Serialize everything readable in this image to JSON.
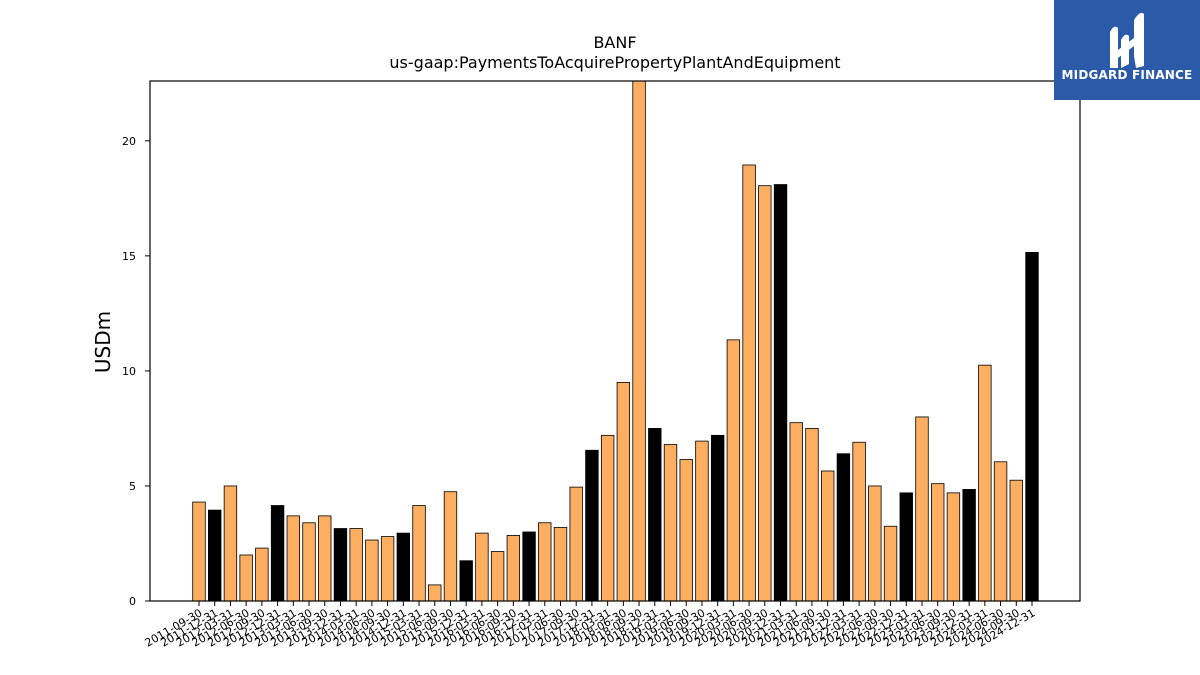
{
  "chart_data": {
    "type": "bar",
    "title": "BANF",
    "subtitle": "us-gaap:PaymentsToAcquirePropertyPlantAndEquipment",
    "ylabel": "USDm",
    "xlabel": "",
    "ylim": [
      0,
      22.6
    ],
    "yticks": [
      0,
      5,
      10,
      15,
      20
    ],
    "colors": {
      "quarter": "#fdae61",
      "year_end": "#000000"
    },
    "categories": [
      "2011-09-30",
      "2011-12-31",
      "2012-03-31",
      "2012-06-30",
      "2012-09-30",
      "2012-12-31",
      "2013-03-31",
      "2013-06-30",
      "2013-09-30",
      "2013-12-31",
      "2014-03-31",
      "2014-06-30",
      "2014-09-30",
      "2014-12-31",
      "2015-03-31",
      "2015-06-30",
      "2015-09-30",
      "2015-12-31",
      "2016-03-31",
      "2016-06-30",
      "2016-09-30",
      "2016-12-31",
      "2017-03-31",
      "2017-06-30",
      "2017-09-30",
      "2017-12-31",
      "2018-03-31",
      "2018-06-30",
      "2018-09-30",
      "2018-12-31",
      "2019-03-31",
      "2019-06-30",
      "2019-09-30",
      "2019-12-31",
      "2020-03-31",
      "2020-06-30",
      "2020-09-30",
      "2020-12-31",
      "2021-03-31",
      "2021-06-30",
      "2021-09-30",
      "2021-12-31",
      "2022-03-31",
      "2022-06-30",
      "2022-09-30",
      "2022-12-31",
      "2023-03-31",
      "2023-06-30",
      "2023-09-30",
      "2023-12-31",
      "2024-03-31",
      "2024-06-30",
      "2024-09-30",
      "2024-12-31"
    ],
    "values": [
      4.3,
      3.95,
      5.0,
      2.0,
      2.3,
      4.15,
      3.7,
      3.4,
      3.7,
      3.15,
      3.15,
      2.65,
      2.8,
      2.95,
      4.15,
      0.7,
      4.75,
      1.75,
      2.95,
      2.15,
      2.85,
      3.0,
      3.4,
      3.2,
      4.95,
      6.55,
      7.2,
      9.5,
      22.6,
      7.5,
      6.8,
      6.15,
      6.95,
      7.2,
      11.35,
      18.95,
      18.05,
      18.1,
      7.75,
      7.5,
      5.65,
      6.4,
      6.9,
      5.0,
      3.25,
      4.7,
      8.0,
      5.1,
      4.7,
      4.85,
      10.25,
      6.05,
      5.25,
      15.15
    ],
    "year_end": [
      false,
      true,
      false,
      false,
      false,
      true,
      false,
      false,
      false,
      true,
      false,
      false,
      false,
      true,
      false,
      false,
      false,
      true,
      false,
      false,
      false,
      true,
      false,
      false,
      false,
      true,
      false,
      false,
      false,
      true,
      false,
      false,
      false,
      true,
      false,
      false,
      false,
      true,
      false,
      false,
      false,
      true,
      false,
      false,
      false,
      true,
      false,
      false,
      false,
      true,
      false,
      false,
      false,
      true
    ]
  },
  "logo": {
    "text": "MIDGARD FINANCE",
    "icon": "midgard-finance-logo-icon"
  }
}
